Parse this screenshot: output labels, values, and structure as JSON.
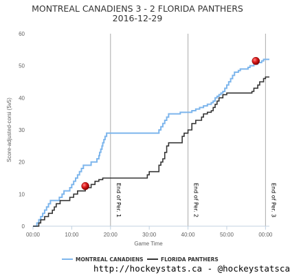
{
  "chart_data": {
    "type": "line",
    "title": "MONTREAL CANADIENS 3 - 2 FLORIDA PANTHERS",
    "subtitle": "2016-12-29",
    "xlabel": "Game Time",
    "ylabel": "Score-adjusted-corsi (5v5)",
    "xlim": [
      0,
      61
    ],
    "ylim": [
      0,
      60
    ],
    "x_ticks": [
      {
        "value": 0,
        "label": "00:00"
      },
      {
        "value": 10,
        "label": "10:00"
      },
      {
        "value": 20,
        "label": "20:00"
      },
      {
        "value": 30,
        "label": "30:00"
      },
      {
        "value": 40,
        "label": "40:00"
      },
      {
        "value": 50,
        "label": "50:00"
      },
      {
        "value": 60,
        "label": "00:00"
      }
    ],
    "y_ticks": [
      0,
      10,
      20,
      30,
      40,
      50,
      60
    ],
    "grid": false,
    "legend_position": "bottom",
    "period_markers": [
      {
        "x": 20,
        "label": "End of Per. 1"
      },
      {
        "x": 40,
        "label": "End of Per. 2"
      },
      {
        "x": 60,
        "label": "End of Per. 3"
      }
    ],
    "series": [
      {
        "name": "MONTREAL CANADIENS",
        "color": "#7cb5ec",
        "step": true,
        "points": [
          [
            0,
            0
          ],
          [
            0.8,
            0
          ],
          [
            1,
            1
          ],
          [
            1.5,
            2
          ],
          [
            2,
            3
          ],
          [
            2.5,
            4
          ],
          [
            3,
            5
          ],
          [
            3.5,
            6
          ],
          [
            4,
            7
          ],
          [
            4.5,
            8
          ],
          [
            6,
            8
          ],
          [
            6.8,
            9
          ],
          [
            7.5,
            10
          ],
          [
            8,
            11
          ],
          [
            9,
            11
          ],
          [
            9.5,
            12
          ],
          [
            10,
            13
          ],
          [
            10.5,
            14
          ],
          [
            11,
            15
          ],
          [
            11.5,
            16
          ],
          [
            12,
            17
          ],
          [
            12.5,
            18
          ],
          [
            13,
            19
          ],
          [
            14.5,
            19
          ],
          [
            15,
            20
          ],
          [
            16,
            20
          ],
          [
            16.5,
            21
          ],
          [
            17,
            22
          ],
          [
            17.2,
            23
          ],
          [
            17.5,
            24
          ],
          [
            17.8,
            25
          ],
          [
            18,
            26
          ],
          [
            18.3,
            27
          ],
          [
            18.6,
            28
          ],
          [
            19,
            29
          ],
          [
            32,
            29
          ],
          [
            32.5,
            30
          ],
          [
            33,
            31
          ],
          [
            33.5,
            32
          ],
          [
            34,
            33
          ],
          [
            34.5,
            34
          ],
          [
            35,
            35
          ],
          [
            37.5,
            35
          ],
          [
            38,
            35.5
          ],
          [
            40,
            35.5
          ],
          [
            41,
            36
          ],
          [
            42,
            36.5
          ],
          [
            43,
            37
          ],
          [
            44,
            37.5
          ],
          [
            45,
            38
          ],
          [
            46,
            38.5
          ],
          [
            46.5,
            39
          ],
          [
            47,
            40
          ],
          [
            47.5,
            40.5
          ],
          [
            48,
            41
          ],
          [
            48.5,
            41.5
          ],
          [
            49,
            42
          ],
          [
            49.5,
            43
          ],
          [
            50,
            44
          ],
          [
            50.5,
            45
          ],
          [
            51,
            46
          ],
          [
            51.5,
            47
          ],
          [
            52,
            48
          ],
          [
            53,
            48.5
          ],
          [
            53.5,
            49
          ],
          [
            55,
            49
          ],
          [
            55.5,
            49.5
          ],
          [
            56,
            50
          ],
          [
            57,
            50.5
          ],
          [
            58,
            51
          ],
          [
            59,
            51.5
          ],
          [
            59.5,
            52
          ],
          [
            61,
            52
          ]
        ]
      },
      {
        "name": "FLORIDA PANTHERS",
        "color": "#333333",
        "step": true,
        "points": [
          [
            0,
            0
          ],
          [
            1,
            0
          ],
          [
            1.5,
            1
          ],
          [
            2,
            2
          ],
          [
            3,
            3
          ],
          [
            4,
            4
          ],
          [
            5,
            5
          ],
          [
            5.5,
            6
          ],
          [
            6,
            7
          ],
          [
            7,
            8
          ],
          [
            9,
            8
          ],
          [
            9.5,
            9
          ],
          [
            10.5,
            10
          ],
          [
            11.5,
            11
          ],
          [
            13,
            11
          ],
          [
            13.5,
            12
          ],
          [
            15,
            13
          ],
          [
            16,
            14
          ],
          [
            17,
            14.5
          ],
          [
            18,
            15
          ],
          [
            29,
            15
          ],
          [
            29.5,
            16
          ],
          [
            30,
            17
          ],
          [
            32,
            17
          ],
          [
            32.5,
            19
          ],
          [
            33,
            20
          ],
          [
            33.5,
            21
          ],
          [
            34,
            23
          ],
          [
            34.5,
            25
          ],
          [
            35,
            26
          ],
          [
            38,
            26
          ],
          [
            38.5,
            28
          ],
          [
            39,
            29
          ],
          [
            40,
            30
          ],
          [
            41,
            32
          ],
          [
            42,
            33
          ],
          [
            43,
            33
          ],
          [
            43.5,
            34
          ],
          [
            44,
            35
          ],
          [
            45,
            35.5
          ],
          [
            46,
            36
          ],
          [
            46.5,
            37
          ],
          [
            47,
            38
          ],
          [
            47.5,
            39
          ],
          [
            48,
            40
          ],
          [
            49,
            41
          ],
          [
            50,
            41.5
          ],
          [
            56,
            41.5
          ],
          [
            56.5,
            42
          ],
          [
            57,
            43
          ],
          [
            58,
            44
          ],
          [
            58.5,
            45
          ],
          [
            59.5,
            46
          ],
          [
            60,
            46.5
          ],
          [
            61,
            46.5
          ]
        ]
      }
    ],
    "goal_markers": [
      {
        "x": 13.5,
        "y": 12.5,
        "team": "FLORIDA PANTHERS",
        "color": "#d11a1a"
      },
      {
        "x": 57.5,
        "y": 51.5,
        "team": "MONTREAL CANADIENS",
        "color": "#d11a1a"
      }
    ]
  },
  "footer": {
    "credit": "http://hockeystats.ca - @hockeystatsca"
  }
}
